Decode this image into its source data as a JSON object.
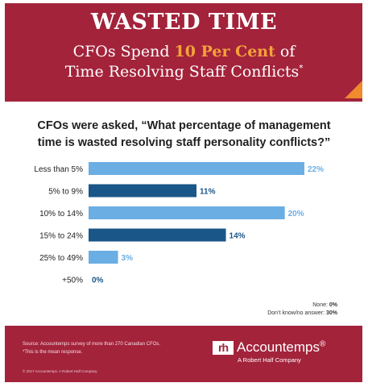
{
  "header": {
    "title": "WASTED TIME",
    "subtitle_pre": "CFOs Spend ",
    "subtitle_highlight": "10 Per Cent",
    "subtitle_post": " of",
    "subtitle_line2": "Time Resolving Staff Conflicts",
    "asterisk": "*"
  },
  "question": {
    "prefix": "CFOs were asked, ",
    "line1": "“What percentage of management",
    "line2": "time is wasted resolving staff personality conflicts?”"
  },
  "chart_data": {
    "type": "bar",
    "orientation": "horizontal",
    "categories": [
      "Less than 5%",
      "5% to 9%",
      "10% to 14%",
      "15% to 24%",
      "25% to 49%",
      "+50%"
    ],
    "values": [
      22,
      11,
      20,
      14,
      3,
      0
    ],
    "value_labels": [
      "22%",
      "11%",
      "20%",
      "14%",
      "3%",
      "0%"
    ],
    "colors": [
      "#6aaee4",
      "#1a5687",
      "#6aaee4",
      "#1a5687",
      "#6aaee4",
      "#1a5687"
    ],
    "xlim": [
      0,
      22
    ],
    "grid": false
  },
  "notes": {
    "none_label": "None: ",
    "none_value": "0%",
    "dk_label": "Don’t know/no answer: ",
    "dk_value": "30%"
  },
  "footer": {
    "source": "Source: Accountemps survey of more than 270 Canadian CFOs.",
    "footnote": "*This is the mean response.",
    "copyright": "© 2017 Accountemps. A Robert Half Company.",
    "logo_mark": "rh",
    "brand": "Accountemps",
    "brand_mark": "®",
    "tagline": "A Robert Half Company"
  },
  "colors": {
    "header_bg": "#a3233b",
    "accent": "#f4a23a",
    "corner": "#ef8a2d",
    "bar_light": "#6aaee4",
    "bar_dark": "#1a5687"
  }
}
